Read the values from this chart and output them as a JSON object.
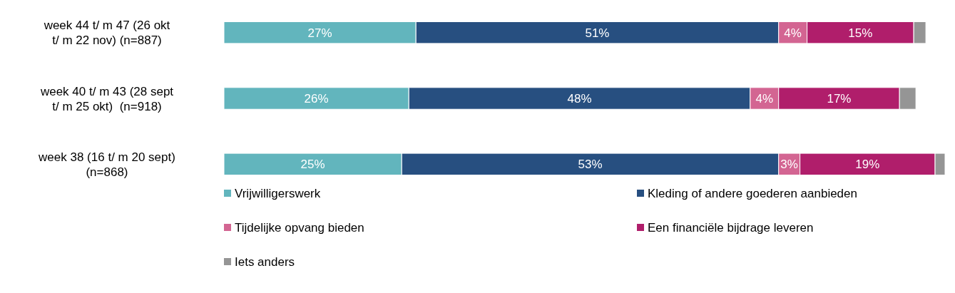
{
  "chart_data": {
    "type": "bar",
    "orientation": "horizontal",
    "stacked": true,
    "categories": [
      "week 44 t/ m 47 (26 okt t/ m 22 nov) (n=887)",
      "week 40 t/ m 43 (28 sept t/ m 25 okt)  (n=918)",
      "week 38 (16 t/ m 20 sept) (n=868)"
    ],
    "series": [
      {
        "name": "Vrijwilligerswerk",
        "color": "#62b5bd",
        "values": [
          27,
          26,
          25
        ],
        "value_labels": [
          "27%",
          "26%",
          "25%"
        ]
      },
      {
        "name": "Kleding of andere goederen aanbieden",
        "color": "#274f80",
        "values": [
          51,
          48,
          53
        ],
        "value_labels": [
          "51%",
          "48%",
          "53%"
        ]
      },
      {
        "name": "Tijdelijke opvang bieden",
        "color": "#d36592",
        "values": [
          4,
          4,
          3
        ],
        "value_labels": [
          "4%",
          "4%",
          "3%"
        ]
      },
      {
        "name": "Een financiële bijdrage leveren",
        "color": "#b01e6b",
        "values": [
          15,
          17,
          19
        ],
        "value_labels": [
          "15%",
          "17%",
          "19%"
        ]
      },
      {
        "name": "Iets anders",
        "color": "#959595",
        "values": [
          1.7,
          2.3,
          1.4
        ],
        "value_labels": [
          null,
          null,
          null
        ]
      }
    ],
    "xlim": [
      0,
      102
    ],
    "tick_labels": "y",
    "legend": "bottom"
  }
}
